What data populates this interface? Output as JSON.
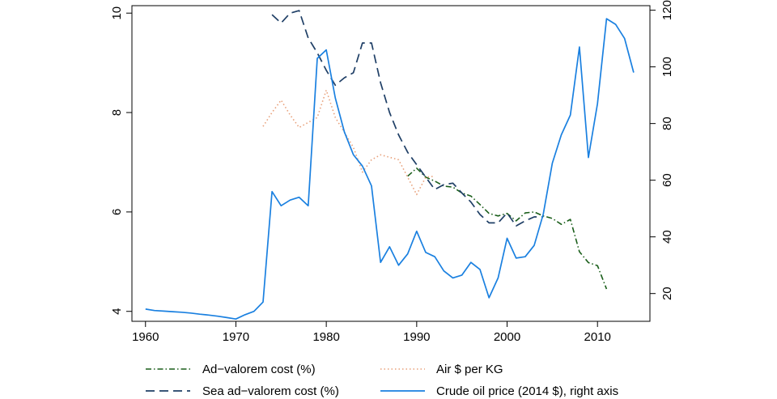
{
  "chart_data": {
    "type": "line",
    "title": "",
    "xlabel": "",
    "ylabel": "",
    "grid": false,
    "legend_position": "bottom",
    "x_range": [
      1958.5,
      2015.8
    ],
    "x_ticks": [
      "1960",
      "1970",
      "1980",
      "1990",
      "2000",
      "2010"
    ],
    "y_left_range": [
      3.8,
      10.15
    ],
    "y_left_ticks": [
      "4",
      "6",
      "8",
      "10"
    ],
    "y_right_range": [
      10.2,
      121.6
    ],
    "y_right_ticks": [
      "20",
      "40",
      "60",
      "80",
      "100",
      "120"
    ],
    "series": [
      {
        "name": "Ad−valorem cost (%)",
        "axis": "left",
        "style": "dash-dot",
        "color": "#1a5e1a",
        "points": [
          [
            1989,
            6.72
          ],
          [
            1990,
            6.88
          ],
          [
            1991,
            6.7
          ],
          [
            1992,
            6.62
          ],
          [
            1993,
            6.52
          ],
          [
            1994,
            6.5
          ],
          [
            1995,
            6.38
          ],
          [
            1996,
            6.32
          ],
          [
            1997,
            6.15
          ],
          [
            1998,
            5.97
          ],
          [
            1999,
            5.92
          ],
          [
            2000,
            5.97
          ],
          [
            2001,
            5.82
          ],
          [
            2002,
            5.98
          ],
          [
            2003,
            6.0
          ],
          [
            2004,
            5.92
          ],
          [
            2005,
            5.87
          ],
          [
            2006,
            5.75
          ],
          [
            2007,
            5.85
          ],
          [
            2008,
            5.2
          ],
          [
            2009,
            4.98
          ],
          [
            2010,
            4.92
          ],
          [
            2011,
            4.45
          ]
        ]
      },
      {
        "name": "Air $ per KG",
        "axis": "left",
        "style": "dotted",
        "color": "#e8a07a",
        "points": [
          [
            1973,
            7.72
          ],
          [
            1974,
            8.0
          ],
          [
            1975,
            8.25
          ],
          [
            1976,
            7.95
          ],
          [
            1977,
            7.7
          ],
          [
            1978,
            7.8
          ],
          [
            1979,
            7.9
          ],
          [
            1980,
            8.45
          ],
          [
            1981,
            7.9
          ],
          [
            1982,
            7.6
          ],
          [
            1983,
            7.3
          ],
          [
            1984,
            6.8
          ],
          [
            1985,
            7.05
          ],
          [
            1986,
            7.15
          ],
          [
            1987,
            7.1
          ],
          [
            1988,
            7.05
          ],
          [
            1989,
            6.7
          ],
          [
            1990,
            6.35
          ],
          [
            1991,
            6.7
          ],
          [
            1992,
            6.72
          ]
        ]
      },
      {
        "name": "Sea ad−valorem cost (%)",
        "axis": "left",
        "style": "dashed",
        "color": "#1f3f66",
        "points": [
          [
            1974,
            9.97
          ],
          [
            1975,
            9.8
          ],
          [
            1976,
            10.0
          ],
          [
            1977,
            10.05
          ],
          [
            1978,
            9.5
          ],
          [
            1979,
            9.2
          ],
          [
            1980,
            8.85
          ],
          [
            1981,
            8.55
          ],
          [
            1982,
            8.7
          ],
          [
            1983,
            8.8
          ],
          [
            1984,
            9.4
          ],
          [
            1985,
            9.4
          ],
          [
            1986,
            8.6
          ],
          [
            1987,
            8.0
          ],
          [
            1988,
            7.55
          ],
          [
            1989,
            7.2
          ],
          [
            1990,
            6.95
          ],
          [
            1991,
            6.7
          ],
          [
            1992,
            6.45
          ],
          [
            1993,
            6.55
          ],
          [
            1994,
            6.58
          ],
          [
            1995,
            6.38
          ],
          [
            1996,
            6.2
          ],
          [
            1997,
            5.95
          ],
          [
            1998,
            5.78
          ],
          [
            1999,
            5.78
          ],
          [
            2000,
            5.98
          ],
          [
            2001,
            5.72
          ],
          [
            2002,
            5.82
          ],
          [
            2003,
            5.9
          ],
          [
            2004,
            5.9
          ]
        ]
      },
      {
        "name": "Crude oil price (2014 $), right axis",
        "axis": "right",
        "style": "solid",
        "color": "#1a80e0",
        "points": [
          [
            1960,
            14.5
          ],
          [
            1961,
            14.0
          ],
          [
            1962,
            13.8
          ],
          [
            1963,
            13.6
          ],
          [
            1964,
            13.4
          ],
          [
            1965,
            13.1
          ],
          [
            1966,
            12.7
          ],
          [
            1967,
            12.4
          ],
          [
            1968,
            12.0
          ],
          [
            1969,
            11.5
          ],
          [
            1970,
            11.0
          ],
          [
            1971,
            12.5
          ],
          [
            1972,
            13.7
          ],
          [
            1973,
            17.0
          ],
          [
            1974,
            56.0
          ],
          [
            1975,
            51.0
          ],
          [
            1976,
            53.0
          ],
          [
            1977,
            54.0
          ],
          [
            1978,
            51.0
          ],
          [
            1979,
            103.0
          ],
          [
            1980,
            106.0
          ],
          [
            1981,
            89.0
          ],
          [
            1982,
            77.0
          ],
          [
            1983,
            69.0
          ],
          [
            1984,
            65.0
          ],
          [
            1985,
            58.0
          ],
          [
            1986,
            31.0
          ],
          [
            1987,
            36.5
          ],
          [
            1988,
            30.0
          ],
          [
            1989,
            34.0
          ],
          [
            1990,
            42.0
          ],
          [
            1991,
            34.5
          ],
          [
            1992,
            33.0
          ],
          [
            1993,
            28.0
          ],
          [
            1994,
            25.5
          ],
          [
            1995,
            26.5
          ],
          [
            1996,
            31.0
          ],
          [
            1997,
            28.5
          ],
          [
            1998,
            18.5
          ],
          [
            1999,
            25.5
          ],
          [
            2000,
            39.5
          ],
          [
            2001,
            32.5
          ],
          [
            2002,
            33.0
          ],
          [
            2003,
            37.0
          ],
          [
            2004,
            48.0
          ],
          [
            2005,
            66.0
          ],
          [
            2006,
            76.0
          ],
          [
            2007,
            83.0
          ],
          [
            2008,
            107.0
          ],
          [
            2009,
            68.0
          ],
          [
            2010,
            87.0
          ],
          [
            2011,
            117.0
          ],
          [
            2012,
            115.0
          ],
          [
            2013,
            110.0
          ],
          [
            2014,
            98.0
          ]
        ]
      }
    ]
  }
}
